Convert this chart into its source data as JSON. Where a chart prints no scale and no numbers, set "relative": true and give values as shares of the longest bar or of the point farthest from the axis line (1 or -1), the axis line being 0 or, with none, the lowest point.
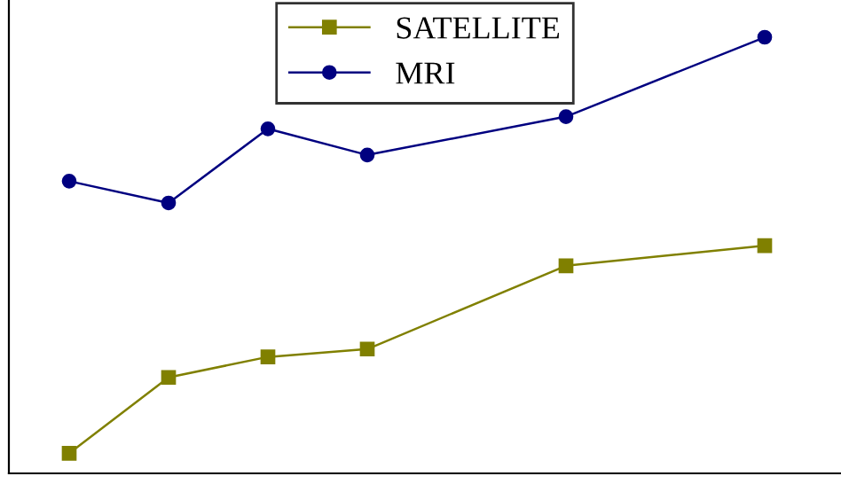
{
  "chart_data": {
    "type": "line",
    "relative": true,
    "categories": [
      null,
      null,
      null,
      null,
      null,
      null,
      null,
      null
    ],
    "legend": "top",
    "series": [
      {
        "name": "SATELLITE",
        "color": "#808000",
        "marker": "square",
        "values": [
          0.046,
          0.22,
          0.267,
          0.285,
          null,
          0.476,
          null,
          0.522
        ]
      },
      {
        "name": "MRI",
        "color": "#000080",
        "marker": "circle",
        "values": [
          0.67,
          0.62,
          0.79,
          0.73,
          null,
          0.818,
          null,
          1.0
        ]
      }
    ]
  }
}
